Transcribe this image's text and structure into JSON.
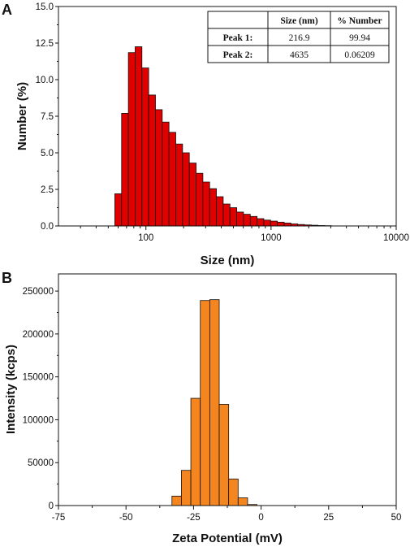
{
  "chart_data": [
    {
      "panel": "A",
      "type": "bar",
      "xscale": "log",
      "xlabel": "Size (nm)",
      "ylabel": "Number (%)",
      "xlim": [
        20,
        10000
      ],
      "ylim": [
        0,
        15
      ],
      "xticks": [
        "100",
        "1000",
        "10000"
      ],
      "yticks": [
        "0.0",
        "2.5",
        "5.0",
        "7.5",
        "10.0",
        "12.5",
        "15.0"
      ],
      "bar_color": "#e00000",
      "bins": [
        {
          "from": 56.4,
          "to": 63.9,
          "value": 2.2
        },
        {
          "from": 63.9,
          "to": 72.4,
          "value": 7.7
        },
        {
          "from": 72.4,
          "to": 82.0,
          "value": 11.85
        },
        {
          "from": 82.0,
          "to": 92.9,
          "value": 12.25
        },
        {
          "from": 92.9,
          "to": 105.2,
          "value": 10.8
        },
        {
          "from": 105.2,
          "to": 119.2,
          "value": 8.95
        },
        {
          "from": 119.2,
          "to": 135.0,
          "value": 7.95
        },
        {
          "from": 135.0,
          "to": 152.9,
          "value": 7.1
        },
        {
          "from": 152.9,
          "to": 173.2,
          "value": 6.4
        },
        {
          "from": 173.2,
          "to": 196.2,
          "value": 5.6
        },
        {
          "from": 196.2,
          "to": 222.3,
          "value": 5.0
        },
        {
          "from": 222.3,
          "to": 251.8,
          "value": 4.3
        },
        {
          "from": 251.8,
          "to": 285.2,
          "value": 3.6
        },
        {
          "from": 285.2,
          "to": 323.0,
          "value": 3.0
        },
        {
          "from": 323.0,
          "to": 365.9,
          "value": 2.55
        },
        {
          "from": 365.9,
          "to": 414.5,
          "value": 2.0
        },
        {
          "from": 414.5,
          "to": 469.5,
          "value": 1.5
        },
        {
          "from": 469.5,
          "to": 531.8,
          "value": 1.25
        },
        {
          "from": 531.8,
          "to": 602.4,
          "value": 0.95
        },
        {
          "from": 602.4,
          "to": 682.4,
          "value": 0.8
        },
        {
          "from": 682.4,
          "to": 772.9,
          "value": 0.65
        },
        {
          "from": 772.9,
          "to": 875.5,
          "value": 0.5
        },
        {
          "from": 875.5,
          "to": 991.7,
          "value": 0.4
        },
        {
          "from": 991.7,
          "to": 1123.3,
          "value": 0.33
        },
        {
          "from": 1123.3,
          "to": 1272.4,
          "value": 0.26
        },
        {
          "from": 1272.4,
          "to": 1441.3,
          "value": 0.2
        },
        {
          "from": 1441.3,
          "to": 1632.6,
          "value": 0.14
        },
        {
          "from": 1632.6,
          "to": 1849.3,
          "value": 0.1
        },
        {
          "from": 1849.3,
          "to": 2094.8,
          "value": 0.07
        },
        {
          "from": 2094.8,
          "to": 2372.8,
          "value": 0.05
        },
        {
          "from": 2372.8,
          "to": 2687.8,
          "value": 0.03
        },
        {
          "from": 2687.8,
          "to": 3044.5,
          "value": 0.02
        }
      ],
      "table": {
        "headers": [
          "",
          "Size (nm)",
          "% Number"
        ],
        "rows": [
          [
            "Peak 1:",
            "216.9",
            "99.94"
          ],
          [
            "Peak 2:",
            "4635",
            "0.06209"
          ]
        ]
      }
    },
    {
      "panel": "B",
      "type": "bar",
      "xlabel": "Zeta Potential (mV)",
      "ylabel": "Intensity (kcps)",
      "xlim": [
        -75,
        50
      ],
      "ylim": [
        0,
        270000
      ],
      "xticks": [
        "-75",
        "-50",
        "-25",
        "0",
        "25",
        "50"
      ],
      "yticks": [
        "0",
        "50000",
        "100000",
        "150000",
        "200000",
        "250000"
      ],
      "bar_color": "#f5861f",
      "bins": [
        {
          "from": -33.0,
          "to": -29.5,
          "value": 11000
        },
        {
          "from": -29.5,
          "to": -26.0,
          "value": 41000
        },
        {
          "from": -26.0,
          "to": -22.5,
          "value": 125000
        },
        {
          "from": -22.5,
          "to": -19.0,
          "value": 239000
        },
        {
          "from": -19.0,
          "to": -15.5,
          "value": 240000
        },
        {
          "from": -15.5,
          "to": -12.0,
          "value": 118000
        },
        {
          "from": -12.0,
          "to": -8.5,
          "value": 31000
        },
        {
          "from": -8.5,
          "to": -5.0,
          "value": 9000
        },
        {
          "from": -5.0,
          "to": -1.5,
          "value": 1200
        }
      ]
    }
  ]
}
